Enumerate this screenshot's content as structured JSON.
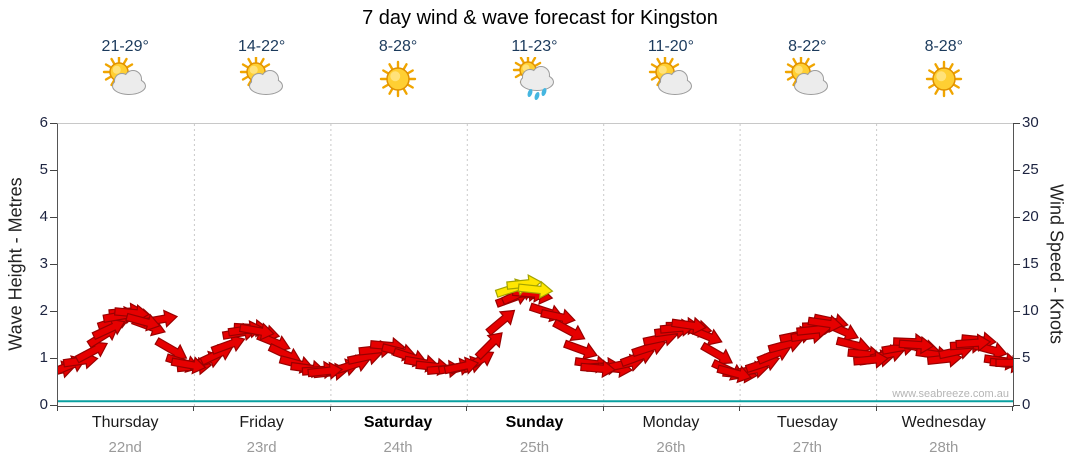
{
  "title": "7 day wind & wave forecast for Kingston",
  "watermark": "www.seabreeze.com.au",
  "days": [
    {
      "name": "Thursday",
      "date": "22nd",
      "temp": "21-29°",
      "icon": "partly-cloudy",
      "weekend": false
    },
    {
      "name": "Friday",
      "date": "23rd",
      "temp": "14-22°",
      "icon": "partly-cloudy",
      "weekend": false
    },
    {
      "name": "Saturday",
      "date": "24th",
      "temp": "8-28°",
      "icon": "sunny",
      "weekend": true
    },
    {
      "name": "Sunday",
      "date": "25th",
      "temp": "11-23°",
      "icon": "showers",
      "weekend": true
    },
    {
      "name": "Monday",
      "date": "26th",
      "temp": "11-20°",
      "icon": "partly-cloudy",
      "weekend": false
    },
    {
      "name": "Tuesday",
      "date": "27th",
      "temp": "8-22°",
      "icon": "partly-cloudy",
      "weekend": false
    },
    {
      "name": "Wednesday",
      "date": "28th",
      "temp": "8-28°",
      "icon": "sunny",
      "weekend": false
    }
  ],
  "axes": {
    "left_label": "Wave Height - Metres",
    "right_label": "Wind Speed - Knots",
    "left_ticks": [
      0,
      1,
      2,
      3,
      4,
      5,
      6
    ],
    "right_ticks": [
      0,
      5,
      10,
      15,
      20,
      25,
      30
    ],
    "left_range": [
      0,
      6
    ],
    "right_range": [
      0,
      30
    ],
    "x_hours": 168
  },
  "colors": {
    "arrow_red": "#e60000",
    "arrow_red_outline": "#990000",
    "arrow_yellow": "#ffe600",
    "arrow_yellow_outline": "#a3a300",
    "wave_line": "#0aa0a0",
    "grid": "#c9c9c9",
    "axis": "#555555"
  },
  "chart_data": {
    "type": "scatter",
    "subtype": "wind-arrow-forecast-timeline",
    "title": "7 day wind & wave forecast for Kingston",
    "xlabel": "",
    "x_unit": "hours",
    "x_range": [
      0,
      168
    ],
    "day_categories": [
      "Thursday 22nd",
      "Friday 23rd",
      "Saturday 24th",
      "Sunday 25th",
      "Monday 26th",
      "Tuesday 27th",
      "Wednesday 28th"
    ],
    "y_left": {
      "label": "Wave Height - Metres",
      "range": [
        0,
        6
      ]
    },
    "y_right": {
      "label": "Wind Speed - Knots",
      "range": [
        0,
        30
      ]
    },
    "grid": "vertical-day-separators-dotted",
    "wind_arrows_format": [
      "hour",
      "knots",
      "direction_deg"
    ],
    "wind_arrows_red": [
      [
        0,
        3.8,
        -12
      ],
      [
        2,
        4.3,
        -22
      ],
      [
        4,
        4.8,
        -8
      ],
      [
        6,
        5.8,
        -28
      ],
      [
        8,
        7.5,
        -32
      ],
      [
        10,
        9.0,
        -18
      ],
      [
        12,
        10.0,
        -5
      ],
      [
        14,
        9.5,
        8
      ],
      [
        16,
        8.5,
        20
      ],
      [
        18,
        9.2,
        -10
      ],
      [
        20,
        6.0,
        30
      ],
      [
        22,
        4.6,
        18
      ],
      [
        24,
        4.2,
        -5
      ],
      [
        26,
        4.8,
        -18
      ],
      [
        28,
        5.5,
        -25
      ],
      [
        30,
        6.5,
        -20
      ],
      [
        32,
        7.8,
        -10
      ],
      [
        34,
        8.3,
        3
      ],
      [
        36,
        7.8,
        12
      ],
      [
        38,
        6.8,
        22
      ],
      [
        40,
        5.5,
        25
      ],
      [
        42,
        4.5,
        15
      ],
      [
        44,
        4.0,
        8
      ],
      [
        46,
        3.8,
        -4
      ],
      [
        48,
        3.6,
        -6
      ],
      [
        50,
        4.0,
        -14
      ],
      [
        52,
        4.4,
        -18
      ],
      [
        54,
        5.2,
        -12
      ],
      [
        56,
        6.0,
        -6
      ],
      [
        58,
        6.4,
        5
      ],
      [
        60,
        5.8,
        14
      ],
      [
        62,
        5.2,
        18
      ],
      [
        64,
        4.6,
        10
      ],
      [
        66,
        4.2,
        6
      ],
      [
        68,
        3.9,
        -5
      ],
      [
        70,
        4.1,
        -10
      ],
      [
        72,
        4.3,
        -15
      ],
      [
        74,
        4.8,
        -30
      ],
      [
        76,
        6.5,
        -45
      ],
      [
        78,
        9.0,
        -40
      ],
      [
        80,
        11.5,
        -20
      ],
      [
        82,
        12.0,
        -5
      ],
      [
        84,
        11.8,
        10
      ],
      [
        86,
        10.0,
        18
      ],
      [
        88,
        9.5,
        12
      ],
      [
        90,
        8.0,
        28
      ],
      [
        92,
        6.0,
        20
      ],
      [
        94,
        4.5,
        8
      ],
      [
        96,
        4.2,
        -4
      ],
      [
        98,
        4.0,
        6
      ],
      [
        100,
        4.5,
        -12
      ],
      [
        102,
        5.2,
        -20
      ],
      [
        104,
        6.2,
        -18
      ],
      [
        106,
        7.2,
        -12
      ],
      [
        108,
        8.0,
        -8
      ],
      [
        110,
        8.5,
        0
      ],
      [
        112,
        8.3,
        10
      ],
      [
        114,
        7.5,
        22
      ],
      [
        116,
        5.5,
        30
      ],
      [
        118,
        3.8,
        25
      ],
      [
        120,
        3.4,
        5
      ],
      [
        122,
        3.8,
        -10
      ],
      [
        124,
        4.5,
        -18
      ],
      [
        126,
        5.5,
        -22
      ],
      [
        128,
        6.5,
        -15
      ],
      [
        130,
        7.5,
        -12
      ],
      [
        132,
        7.5,
        -8
      ],
      [
        134,
        8.5,
        -2
      ],
      [
        136,
        9.0,
        12
      ],
      [
        138,
        8.0,
        24
      ],
      [
        140,
        6.5,
        14
      ],
      [
        142,
        5.5,
        6
      ],
      [
        144,
        5.0,
        -8
      ],
      [
        146,
        5.5,
        -14
      ],
      [
        148,
        6.2,
        -10
      ],
      [
        150,
        6.8,
        2
      ],
      [
        152,
        6.2,
        10
      ],
      [
        154,
        5.5,
        8
      ],
      [
        156,
        5.0,
        -6
      ],
      [
        158,
        5.8,
        -12
      ],
      [
        160,
        6.5,
        -4
      ],
      [
        162,
        7.0,
        6
      ],
      [
        164,
        6.0,
        15
      ],
      [
        166,
        4.8,
        8
      ],
      [
        9,
        8.2,
        -25
      ],
      [
        11,
        9.6,
        -10
      ],
      [
        13,
        9.9,
        5
      ],
      [
        15,
        9.0,
        15
      ],
      [
        23,
        4.4,
        10
      ],
      [
        33,
        8.1,
        -8
      ],
      [
        35,
        8.0,
        10
      ],
      [
        47,
        3.7,
        -6
      ],
      [
        71,
        4.2,
        -12
      ],
      [
        81,
        11.9,
        -25
      ],
      [
        83,
        12.0,
        5
      ],
      [
        95,
        4.0,
        5
      ],
      [
        109,
        8.3,
        -5
      ],
      [
        111,
        8.6,
        8
      ],
      [
        119,
        3.5,
        15
      ],
      [
        133,
        8.1,
        -6
      ],
      [
        135,
        8.8,
        8
      ],
      [
        143,
        4.9,
        -5
      ],
      [
        151,
        6.5,
        4
      ],
      [
        161,
        6.7,
        -4
      ],
      [
        167,
        4.5,
        6
      ],
      [
        168,
        4.6,
        0
      ]
    ],
    "wind_arrows_yellow": [
      [
        80,
        12.5,
        -18
      ],
      [
        82,
        13.0,
        -6
      ],
      [
        84,
        12.4,
        6
      ]
    ],
    "wave_height_line_m": [
      [
        0,
        0.1
      ],
      [
        168,
        0.1
      ]
    ]
  }
}
